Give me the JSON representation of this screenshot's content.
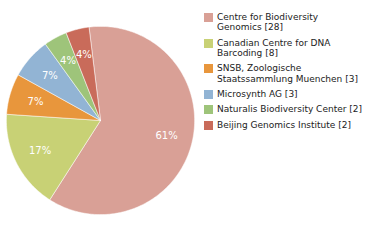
{
  "chart_data": {
    "type": "pie",
    "categories": [
      "Centre for Biodiversity\nGenomics [28]",
      "Canadian Centre for DNA\nBarcoding [8]",
      "SNSB, Zoologische\nStaatssammlung Muenchen [3]",
      "Microsynth AG [3]",
      "Naturalis Biodiversity Center [2]",
      "Beijing Genomics Institute [2]"
    ],
    "values": [
      61,
      17,
      7,
      7,
      4,
      4
    ],
    "value_labels": [
      "61%",
      "17%",
      "7%",
      "7%",
      "4%",
      "4%"
    ],
    "colors": [
      "#d9a096",
      "#c8d175",
      "#e8963c",
      "#92b4d4",
      "#9ec47a",
      "#c96b5a"
    ],
    "data_labels": true,
    "legend": "right"
  }
}
